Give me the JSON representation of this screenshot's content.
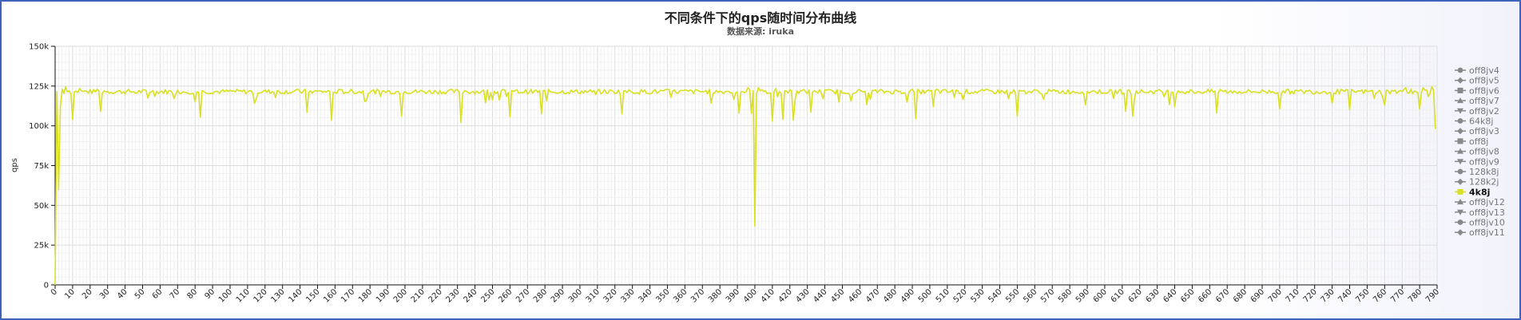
{
  "chart_data": {
    "type": "line",
    "title": "不同条件下的qps随时间分布曲线",
    "subtitle": "数据来源: iruka",
    "ylabel": "qps",
    "xlabel": "",
    "ylim": [
      0,
      150000
    ],
    "xlim": [
      0,
      790
    ],
    "y_ticks": [
      {
        "value": 0,
        "label": "0"
      },
      {
        "value": 25000,
        "label": "25k"
      },
      {
        "value": 50000,
        "label": "50k"
      },
      {
        "value": 75000,
        "label": "75k"
      },
      {
        "value": 100000,
        "label": "100k"
      },
      {
        "value": 125000,
        "label": "125k"
      },
      {
        "value": 150000,
        "label": "150k"
      }
    ],
    "x_tick_step": 10,
    "grid": true,
    "legend_position": "right",
    "active_series": "4k8j",
    "series_color": "#d9e021",
    "inactive_color": "#888888",
    "legend": [
      {
        "name": "off8jv4",
        "marker": "circle"
      },
      {
        "name": "off8jv5",
        "marker": "diamond"
      },
      {
        "name": "off8jv6",
        "marker": "square"
      },
      {
        "name": "off8jv7",
        "marker": "triangle"
      },
      {
        "name": "off8jv2",
        "marker": "triangle-down"
      },
      {
        "name": "64k8j",
        "marker": "circle"
      },
      {
        "name": "off8jv3",
        "marker": "diamond"
      },
      {
        "name": "off8j",
        "marker": "square"
      },
      {
        "name": "off8jv8",
        "marker": "triangle"
      },
      {
        "name": "off8jv9",
        "marker": "triangle-down"
      },
      {
        "name": "128k8j",
        "marker": "circle"
      },
      {
        "name": "128k2j",
        "marker": "diamond"
      },
      {
        "name": "4k8j",
        "marker": "square"
      },
      {
        "name": "off8jv12",
        "marker": "triangle"
      },
      {
        "name": "off8jv13",
        "marker": "triangle-down"
      },
      {
        "name": "off8jv10",
        "marker": "circle"
      },
      {
        "name": "off8jv11",
        "marker": "diamond"
      }
    ],
    "series": [
      {
        "name": "4k8j",
        "baseline": 121500,
        "points": [
          [
            0,
            0
          ],
          [
            2,
            60000
          ],
          [
            3,
            112000
          ],
          [
            4,
            123000
          ],
          [
            6,
            124500
          ],
          [
            8,
            122000
          ],
          [
            10,
            104000
          ],
          [
            11,
            121500
          ],
          [
            14,
            123500
          ],
          [
            24,
            123000
          ],
          [
            26,
            109000
          ],
          [
            28,
            122000
          ],
          [
            46,
            120500
          ],
          [
            83,
            105500
          ],
          [
            85,
            121500
          ],
          [
            144,
            108500
          ],
          [
            146,
            122000
          ],
          [
            158,
            103500
          ],
          [
            160,
            121000
          ],
          [
            198,
            106000
          ],
          [
            200,
            121500
          ],
          [
            232,
            102000
          ],
          [
            234,
            122000
          ],
          [
            260,
            105500
          ],
          [
            262,
            121500
          ],
          [
            278,
            107500
          ],
          [
            280,
            122000
          ],
          [
            324,
            107500
          ],
          [
            326,
            122000
          ],
          [
            391,
            108000
          ],
          [
            393,
            121500
          ],
          [
            396,
            124000
          ],
          [
            398,
            108000
          ],
          [
            400,
            37000
          ],
          [
            402,
            124000
          ],
          [
            406,
            122000
          ],
          [
            410,
            103000
          ],
          [
            412,
            123500
          ],
          [
            416,
            104000
          ],
          [
            418,
            122000
          ],
          [
            422,
            103500
          ],
          [
            424,
            122000
          ],
          [
            432,
            108500
          ],
          [
            434,
            122000
          ],
          [
            492,
            104500
          ],
          [
            494,
            122000
          ],
          [
            502,
            112000
          ],
          [
            504,
            123000
          ],
          [
            550,
            106000
          ],
          [
            552,
            122000
          ],
          [
            612,
            109000
          ],
          [
            614,
            122500
          ],
          [
            616,
            106000
          ],
          [
            618,
            122000
          ],
          [
            640,
            112000
          ],
          [
            642,
            122000
          ],
          [
            664,
            108000
          ],
          [
            666,
            123000
          ],
          [
            700,
            110500
          ],
          [
            702,
            122000
          ],
          [
            740,
            110000
          ],
          [
            742,
            122000
          ],
          [
            760,
            113000
          ],
          [
            762,
            122000
          ],
          [
            772,
            124000
          ],
          [
            775,
            123000
          ],
          [
            780,
            110500
          ],
          [
            782,
            124000
          ],
          [
            784,
            122500
          ],
          [
            787,
            124500
          ],
          [
            789,
            98000
          ]
        ]
      }
    ]
  }
}
